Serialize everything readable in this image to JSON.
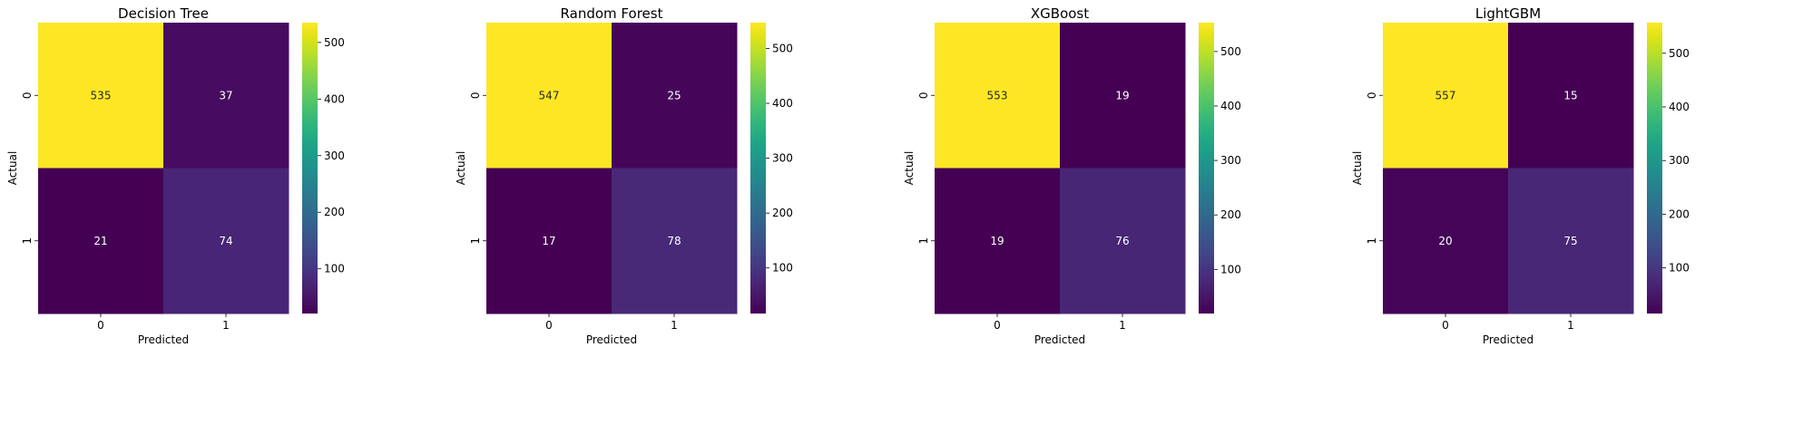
{
  "chart_data": [
    {
      "type": "heatmap",
      "title": "Decision Tree",
      "xlabel": "Predicted",
      "ylabel": "Actual",
      "x_categories": [
        "0",
        "1"
      ],
      "y_categories": [
        "0",
        "1"
      ],
      "values": [
        [
          535,
          37
        ],
        [
          21,
          74
        ]
      ],
      "colorbar": {
        "range": [
          21,
          535
        ],
        "ticks": [
          100,
          200,
          300,
          400,
          500
        ]
      }
    },
    {
      "type": "heatmap",
      "title": "Random Forest",
      "xlabel": "Predicted",
      "ylabel": "Actual",
      "x_categories": [
        "0",
        "1"
      ],
      "y_categories": [
        "0",
        "1"
      ],
      "values": [
        [
          547,
          25
        ],
        [
          17,
          78
        ]
      ],
      "colorbar": {
        "range": [
          17,
          547
        ],
        "ticks": [
          100,
          200,
          300,
          400,
          500
        ]
      }
    },
    {
      "type": "heatmap",
      "title": "XGBoost",
      "xlabel": "Predicted",
      "ylabel": "Actual",
      "x_categories": [
        "0",
        "1"
      ],
      "y_categories": [
        "0",
        "1"
      ],
      "values": [
        [
          553,
          19
        ],
        [
          19,
          76
        ]
      ],
      "colorbar": {
        "range": [
          19,
          553
        ],
        "ticks": [
          100,
          200,
          300,
          400,
          500
        ]
      }
    },
    {
      "type": "heatmap",
      "title": "LightGBM",
      "xlabel": "Predicted",
      "ylabel": "Actual",
      "x_categories": [
        "0",
        "1"
      ],
      "y_categories": [
        "0",
        "1"
      ],
      "values": [
        [
          557,
          15
        ],
        [
          20,
          75
        ]
      ],
      "colorbar": {
        "range": [
          15,
          557
        ],
        "ticks": [
          100,
          200,
          300,
          400,
          500
        ]
      }
    }
  ],
  "colormap": "viridis",
  "colors": {
    "text": "#000000",
    "annotation": "#ffffff",
    "background": "#ffffff"
  }
}
